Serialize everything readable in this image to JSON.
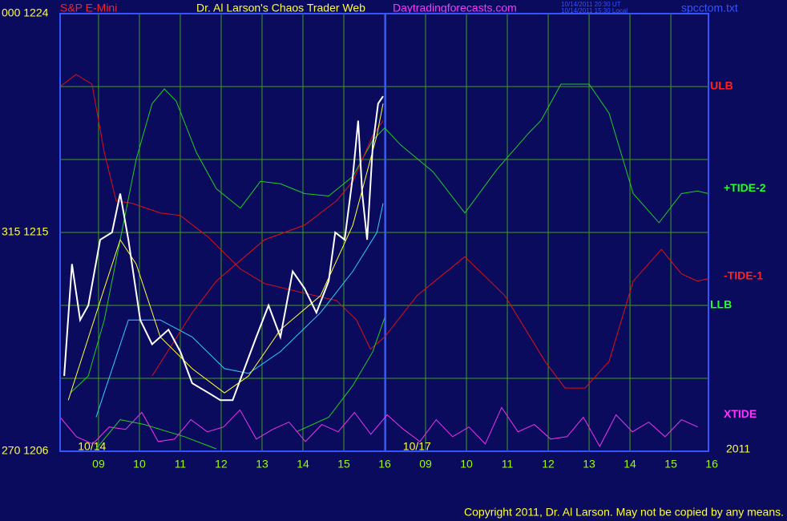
{
  "chart_data": {
    "type": "line",
    "header": {
      "symbol": "S&P E-Mini",
      "title": "Dr. Al Larson's Chaos Trader Web",
      "site": "Daytradingforecasts.com",
      "stamp_ut": "10/14/2011 20:30 UT",
      "stamp_local": "10/14/2011 15:30 Local",
      "file": "spcctom.txt"
    },
    "footer": "Copyright 2011, Dr. Al Larson. May not be copied by any means.",
    "year_label": "2011",
    "xlim": [
      0.06,
      15.92
    ],
    "ylim": [
      1206,
      1224
    ],
    "xticks": [
      {
        "value": 1,
        "label": "09"
      },
      {
        "value": 2,
        "label": "10"
      },
      {
        "value": 3,
        "label": "11"
      },
      {
        "value": 4,
        "label": "12"
      },
      {
        "value": 5,
        "label": "13"
      },
      {
        "value": 6,
        "label": "14"
      },
      {
        "value": 7,
        "label": "15"
      },
      {
        "value": 8,
        "label": "16"
      },
      {
        "value": 9,
        "label": "09"
      },
      {
        "value": 10,
        "label": "10"
      },
      {
        "value": 11,
        "label": "11"
      },
      {
        "value": 12,
        "label": "12"
      },
      {
        "value": 13,
        "label": "13"
      },
      {
        "value": 14,
        "label": "14"
      },
      {
        "value": 15,
        "label": "15"
      },
      {
        "value": 16,
        "label": "16"
      }
    ],
    "yticks": [
      {
        "value": 1224,
        "label": "000 1224"
      },
      {
        "value": 1215,
        "label": "315 1215"
      },
      {
        "value": 1206,
        "label": "270 1206"
      }
    ],
    "ygrid": [
      1209,
      1212,
      1215,
      1218,
      1221
    ],
    "grid": true,
    "grid_color": "#3fa01c",
    "day_divider": 8.02,
    "date_labels": [
      {
        "value": 0.84,
        "label": "10/14"
      },
      {
        "value": 8.79,
        "label": "10/17"
      }
    ],
    "right_labels": [
      {
        "label": "ULB",
        "value": 1221,
        "color": "#ff2020"
      },
      {
        "label": "+TIDE-2",
        "value": 1216.8,
        "color": "#22ff22"
      },
      {
        "label": "-TIDE-1",
        "value": 1213.2,
        "color": "#ff2020"
      },
      {
        "label": "LLB",
        "value": 1212,
        "color": "#22ff22"
      },
      {
        "label": "XTIDE",
        "value": 1207.5,
        "color": "#ff33ff"
      }
    ],
    "lines": [
      {
        "color": "#e01010",
        "x": [
          0.06,
          0.45,
          0.84,
          1.14,
          1.43,
          1.82,
          2.51,
          3.0,
          3.69,
          4.47,
          5.06,
          6.04,
          6.82,
          7.31,
          7.65,
          8.0,
          8.79,
          9.96,
          10.94,
          11.92,
          12.41,
          12.9,
          13.49,
          14.08,
          14.77,
          15.26,
          15.65,
          15.92
        ],
        "values": [
          1221.0,
          1221.5,
          1221.1,
          1218.3,
          1216.3,
          1216.2,
          1215.8,
          1215.7,
          1214.8,
          1213.5,
          1212.9,
          1212.5,
          1212.2,
          1211.4,
          1210.2,
          1210.7,
          1212.4,
          1214.0,
          1212.4,
          1209.7,
          1208.6,
          1208.6,
          1209.7,
          1213.0,
          1214.3,
          1213.3,
          1213.0,
          1213.1
        ]
      },
      {
        "color": "#22cc22",
        "x": [
          0.31,
          0.75,
          1.14,
          1.53,
          1.92,
          2.31,
          2.61,
          2.9,
          3.39,
          3.88,
          4.47,
          4.96,
          5.45,
          6.04,
          6.63,
          7.22,
          7.71,
          8.0,
          8.39,
          9.18,
          9.96,
          10.75,
          11.53,
          11.82,
          11.92,
          12.31,
          13.0,
          13.49,
          14.08,
          14.71,
          15.26,
          15.65,
          15.92
        ],
        "values": [
          1208.4,
          1209.1,
          1211.4,
          1214.7,
          1218.0,
          1220.3,
          1220.9,
          1220.4,
          1218.3,
          1216.8,
          1216.0,
          1217.1,
          1217.0,
          1216.6,
          1216.5,
          1217.3,
          1218.8,
          1219.3,
          1218.6,
          1217.5,
          1215.8,
          1217.6,
          1219.1,
          1219.6,
          1219.9,
          1221.1,
          1221.1,
          1219.9,
          1216.6,
          1215.4,
          1216.6,
          1216.7,
          1216.6
        ]
      },
      {
        "color": "#22cc22",
        "x": [
          0.94,
          1.53,
          2.12,
          3.1,
          3.88,
          4.5,
          5.84,
          6.63,
          7.22,
          7.71,
          8.0
        ],
        "values": [
          1206.1,
          1207.3,
          1207.1,
          1206.6,
          1206.1,
          null,
          1206.8,
          1207.4,
          1208.7,
          1210.1,
          1211.5
        ]
      },
      {
        "color": "#e01010",
        "x": [
          2.31,
          3.29,
          3.88,
          5.06,
          6.04,
          6.82,
          7.22,
          7.71,
          7.96
        ],
        "values": [
          1209.1,
          1211.7,
          1213.0,
          1214.7,
          1215.3,
          1216.3,
          1217.1,
          1219.0,
          1219.6
        ]
      },
      {
        "color": "#33ccff",
        "x": [
          0.94,
          1.73,
          2.51,
          3.29,
          4.08,
          4.67,
          5.45,
          6.43,
          7.22,
          7.81,
          7.96
        ],
        "values": [
          1207.4,
          1211.4,
          1211.4,
          1210.7,
          1209.4,
          1209.2,
          1210.1,
          1211.7,
          1213.4,
          1215.0,
          1216.2
        ]
      },
      {
        "color": "#ee33ee",
        "x": [
          0.06,
          0.46,
          0.86,
          1.26,
          1.66,
          2.06,
          2.46,
          2.86,
          3.26,
          3.66,
          4.06,
          4.46,
          4.86,
          5.26,
          5.66,
          6.06,
          6.46,
          6.86,
          7.26,
          7.66,
          8.06,
          8.46,
          8.86,
          9.26,
          9.66,
          10.06,
          10.46,
          10.86,
          11.26,
          11.66,
          12.06,
          12.46,
          12.86,
          13.26,
          13.66,
          14.06,
          14.46,
          14.86,
          15.26,
          15.66
        ],
        "values": [
          1207.4,
          1206.6,
          1206.3,
          1207.0,
          1206.9,
          1207.6,
          1206.4,
          1206.5,
          1207.3,
          1206.8,
          1207.0,
          1207.7,
          1206.5,
          1206.9,
          1207.2,
          1206.4,
          1207.1,
          1206.8,
          1207.6,
          1206.7,
          1207.5,
          1206.9,
          1206.4,
          1207.3,
          1206.6,
          1207.0,
          1206.3,
          1207.8,
          1206.8,
          1207.1,
          1206.5,
          1206.6,
          1207.4,
          1206.2,
          1207.5,
          1206.8,
          1207.2,
          1206.6,
          1207.3,
          1207.0
        ]
      },
      {
        "color": "#ffff33",
        "x": [
          0.26,
          1.14,
          1.53,
          1.92,
          2.51,
          3.29,
          4.08,
          4.67,
          5.45,
          6.43,
          7.22,
          7.81,
          7.96
        ],
        "values": [
          1208.1,
          1212.7,
          1214.7,
          1213.7,
          1210.7,
          1209.4,
          1208.4,
          1209.1,
          1211.0,
          1212.4,
          1215.3,
          1219.0,
          1220.3
        ]
      },
      {
        "color": "#ffffff",
        "x": [
          0.16,
          0.35,
          0.55,
          0.75,
          1.04,
          1.33,
          1.53,
          1.73,
          2.02,
          2.31,
          2.71,
          3.0,
          3.29,
          3.69,
          3.98,
          4.28,
          4.57,
          4.86,
          5.16,
          5.45,
          5.75,
          6.04,
          6.33,
          6.63,
          6.79,
          7.02,
          7.22,
          7.35,
          7.45,
          7.57,
          7.71,
          7.84,
          7.96
        ],
        "values": [
          1209.1,
          1213.7,
          1211.4,
          1212.0,
          1214.7,
          1215.0,
          1216.6,
          1214.7,
          1211.4,
          1210.4,
          1211.0,
          1210.1,
          1208.8,
          1208.4,
          1208.1,
          1208.1,
          1209.4,
          1210.7,
          1212.0,
          1210.7,
          1213.4,
          1212.7,
          1211.7,
          1213.0,
          1215.0,
          1214.7,
          1217.3,
          1219.6,
          1216.6,
          1214.7,
          1218.6,
          1220.3,
          1220.6
        ]
      }
    ]
  }
}
